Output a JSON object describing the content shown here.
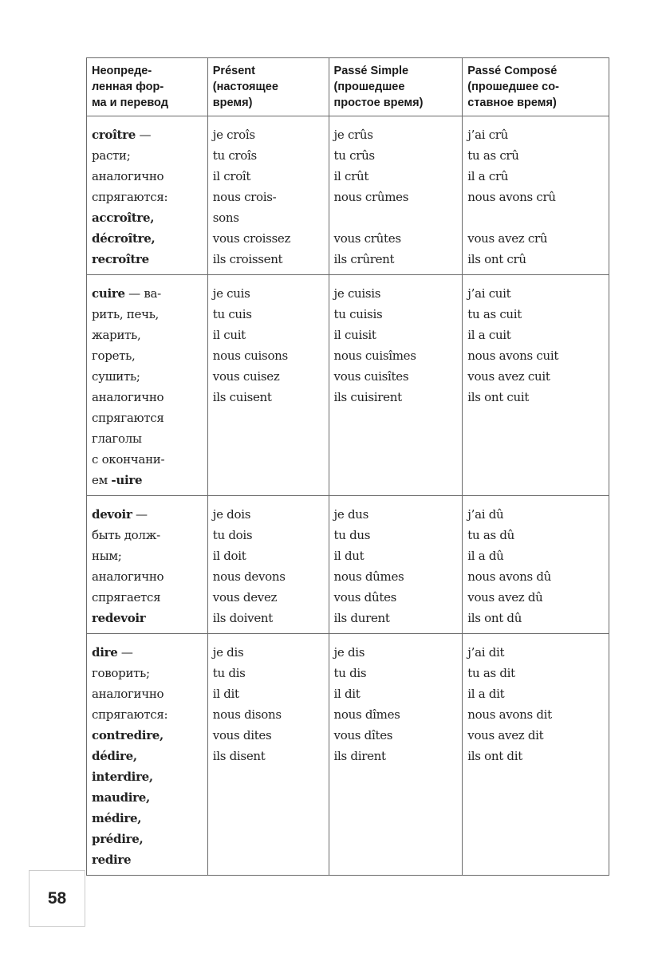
{
  "headers": [
    [
      "Неопреде-",
      "ленная фор-",
      "ма и перевод"
    ],
    [
      "Présent",
      "(настоящее",
      "время)"
    ],
    [
      "Passé Simple",
      "(прошедшее",
      "простое время)"
    ],
    [
      "Passé Composé",
      "(прошедшее со-",
      "ставное время)"
    ]
  ],
  "rows": [
    {
      "infinitive": [
        [
          {
            "t": "croître",
            "b": true
          },
          {
            "t": " —",
            "b": false
          }
        ],
        [
          {
            "t": "расти;",
            "b": false
          }
        ],
        [
          {
            "t": "аналогично",
            "b": false
          }
        ],
        [
          {
            "t": "спрягаются:",
            "b": false
          }
        ],
        [
          {
            "t": "accroître,",
            "b": true
          }
        ],
        [
          {
            "t": "décroître,",
            "b": true
          }
        ],
        [
          {
            "t": "recroître",
            "b": true
          }
        ]
      ],
      "present": [
        "je croîs",
        "tu croîs",
        "il croît",
        "nous crois-",
        "sons",
        "vous croissez",
        "ils croissent"
      ],
      "passe_simple": [
        "je crûs",
        "tu crûs",
        "il crût",
        "nous crûmes",
        "",
        "vous crûtes",
        "ils crûrent"
      ],
      "passe_compose": [
        "j’ai crû",
        "tu as crû",
        "il a crû",
        "nous avons crû",
        "",
        "vous avez crû",
        "ils ont crû"
      ]
    },
    {
      "infinitive": [
        [
          {
            "t": "cuire",
            "b": true
          },
          {
            "t": " — ва-",
            "b": false
          }
        ],
        [
          {
            "t": "рить, печь,",
            "b": false
          }
        ],
        [
          {
            "t": "жарить,",
            "b": false
          }
        ],
        [
          {
            "t": "гореть,",
            "b": false
          }
        ],
        [
          {
            "t": "сушить;",
            "b": false
          }
        ],
        [
          {
            "t": "аналогично",
            "b": false
          }
        ],
        [
          {
            "t": "спрягаются",
            "b": false
          }
        ],
        [
          {
            "t": "глаголы",
            "b": false
          }
        ],
        [
          {
            "t": "с окончани-",
            "b": false
          }
        ],
        [
          {
            "t": "ем ",
            "b": false
          },
          {
            "t": "-uire",
            "b": true
          }
        ]
      ],
      "present": [
        "je cuis",
        "tu cuis",
        "il cuit",
        "nous cuisons",
        "vous cuisez",
        "ils cuisent"
      ],
      "passe_simple": [
        "je cuisis",
        "tu cuisis",
        "il cuisit",
        "nous cuisîmes",
        "vous cuisîtes",
        "ils cuisirent"
      ],
      "passe_compose": [
        "j’ai cuit",
        "tu as cuit",
        "il a cuit",
        "nous avons cuit",
        "vous avez cuit",
        "ils ont cuit"
      ]
    },
    {
      "infinitive": [
        [
          {
            "t": "devoir",
            "b": true
          },
          {
            "t": " —",
            "b": false
          }
        ],
        [
          {
            "t": "быть долж-",
            "b": false
          }
        ],
        [
          {
            "t": "ным;",
            "b": false
          }
        ],
        [
          {
            "t": "аналогично",
            "b": false
          }
        ],
        [
          {
            "t": "спрягается",
            "b": false
          }
        ],
        [
          {
            "t": "redevoir",
            "b": true
          }
        ]
      ],
      "present": [
        "je dois",
        "tu dois",
        "il doit",
        "nous devons",
        "vous devez",
        "ils doivent"
      ],
      "passe_simple": [
        "je dus",
        "tu dus",
        "il dut",
        "nous dûmes",
        "vous dûtes",
        "ils durent"
      ],
      "passe_compose": [
        "j’ai dû",
        "tu as dû",
        "il a dû",
        "nous avons dû",
        "vous avez dû",
        "ils ont dû"
      ]
    },
    {
      "infinitive": [
        [
          {
            "t": "dire",
            "b": true
          },
          {
            "t": " —",
            "b": false
          }
        ],
        [
          {
            "t": "говорить;",
            "b": false
          }
        ],
        [
          {
            "t": "аналогично",
            "b": false
          }
        ],
        [
          {
            "t": "спрягаются:",
            "b": false
          }
        ],
        [
          {
            "t": "contredire,",
            "b": true
          }
        ],
        [
          {
            "t": "dédire,",
            "b": true
          }
        ],
        [
          {
            "t": "interdire,",
            "b": true
          }
        ],
        [
          {
            "t": "maudire,",
            "b": true
          }
        ],
        [
          {
            "t": "médire,",
            "b": true
          }
        ],
        [
          {
            "t": "prédire,",
            "b": true
          }
        ],
        [
          {
            "t": "redire",
            "b": true
          }
        ]
      ],
      "present": [
        "je dis",
        "tu dis",
        "il dit",
        "nous disons",
        "vous dites",
        "ils disent"
      ],
      "passe_simple": [
        "je dis",
        "tu dis",
        "il dit",
        "nous dîmes",
        "vous dîtes",
        "ils dirent"
      ],
      "passe_compose": [
        "j’ai dit",
        "tu as dit",
        "il a dit",
        "nous avons dit",
        "vous avez dit",
        "ils ont dit"
      ]
    }
  ],
  "page_number": "58"
}
